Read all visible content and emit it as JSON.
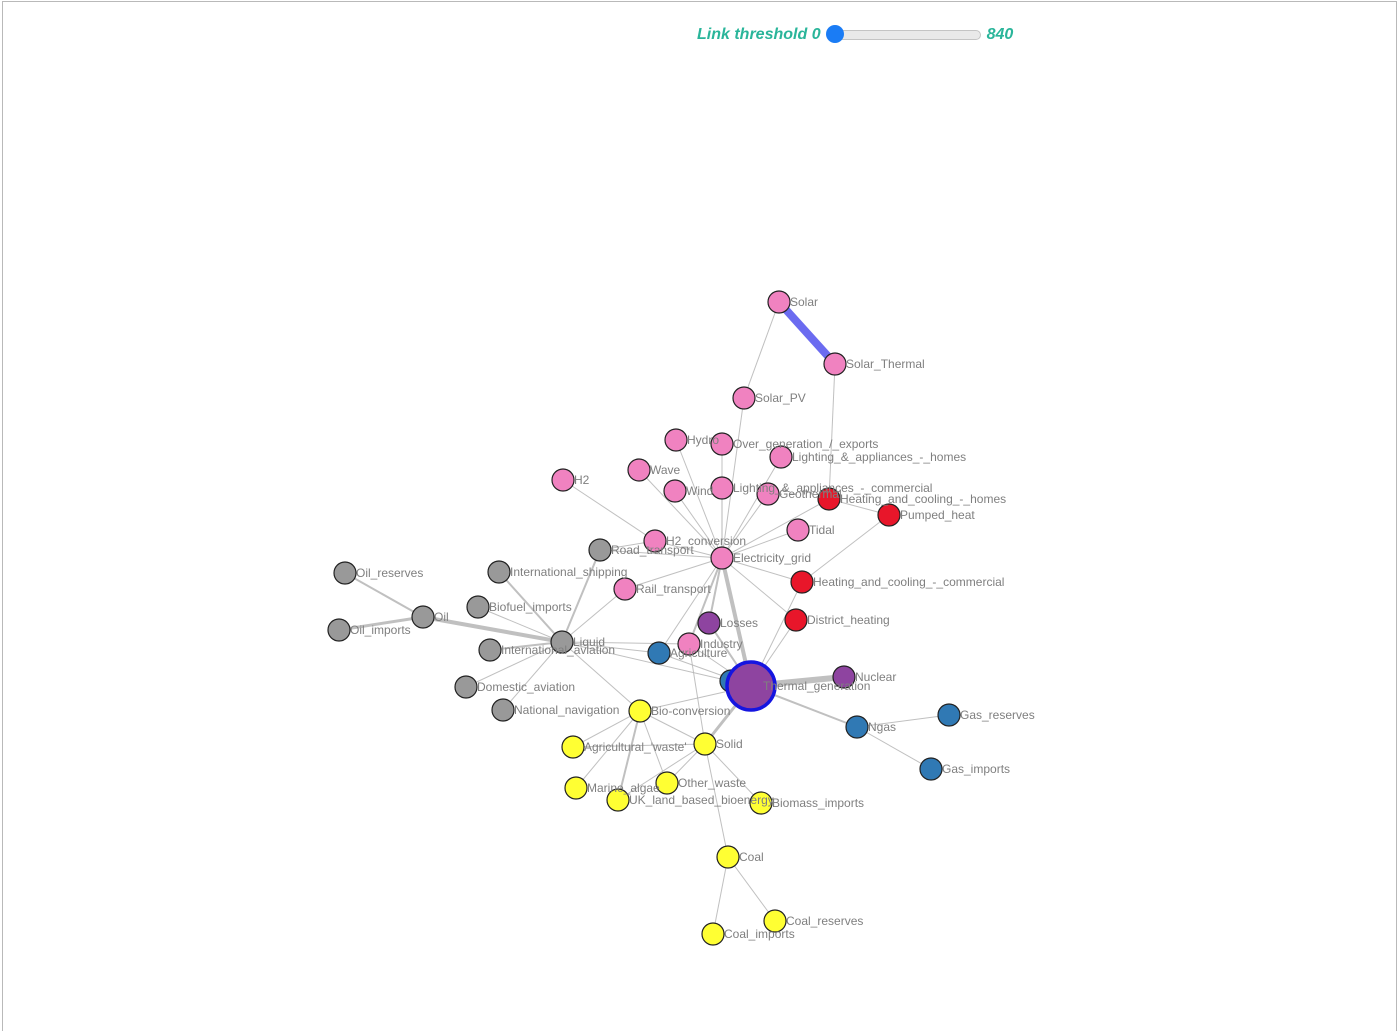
{
  "controls": {
    "label": "Link threshold",
    "min": "0",
    "max": "840",
    "value": 0
  },
  "colors": {
    "pink": "#f082c0",
    "gray": "#999999",
    "red": "#e8162a",
    "purple": "#8e44a0",
    "blue": "#3079b4",
    "yellow": "#ffff33",
    "link": "#b5b5b5",
    "highlight_link": "#6b6bf0",
    "selected_stroke": "#1515e0"
  },
  "nodes": [
    {
      "id": "Solar",
      "label": "Solar",
      "color": "pink"
    },
    {
      "id": "Solar_Thermal",
      "label": "Solar_Thermal",
      "color": "pink"
    },
    {
      "id": "Solar_PV",
      "label": "Solar_PV",
      "color": "pink"
    },
    {
      "id": "Hydro",
      "label": "Hydro",
      "color": "pink"
    },
    {
      "id": "Over_generation",
      "label": "Over_generation_/_exports",
      "color": "pink"
    },
    {
      "id": "Lighting_homes",
      "label": "Lighting_&_appliances_-_homes",
      "color": "pink"
    },
    {
      "id": "Wave",
      "label": "Wave",
      "color": "pink"
    },
    {
      "id": "H2",
      "label": "H2",
      "color": "pink"
    },
    {
      "id": "Wind",
      "label": "Wind",
      "color": "pink"
    },
    {
      "id": "Lighting_commercial",
      "label": "Lighting_&_appliances_-_commercial",
      "color": "pink"
    },
    {
      "id": "Geothermal",
      "label": "Geothermal",
      "color": "pink"
    },
    {
      "id": "Heating_homes",
      "label": "Heating_and_cooling_-_homes",
      "color": "red"
    },
    {
      "id": "Pumped_heat",
      "label": "Pumped_heat",
      "color": "red"
    },
    {
      "id": "Tidal",
      "label": "Tidal",
      "color": "pink"
    },
    {
      "id": "H2_conversion",
      "label": "H2_conversion",
      "color": "pink"
    },
    {
      "id": "Road_transport",
      "label": "Road_transport",
      "color": "gray"
    },
    {
      "id": "Electricity_grid",
      "label": "Electricity_grid",
      "color": "pink"
    },
    {
      "id": "Oil_reserves",
      "label": "Oil_reserves",
      "color": "gray"
    },
    {
      "id": "International_shipping",
      "label": "International_shipping",
      "color": "gray"
    },
    {
      "id": "Rail_transport",
      "label": "Rail_transport",
      "color": "pink"
    },
    {
      "id": "Heating_commercial",
      "label": "Heating_and_cooling_-_commercial",
      "color": "red"
    },
    {
      "id": "Biofuel_imports",
      "label": "Biofuel_imports",
      "color": "gray"
    },
    {
      "id": "Oil",
      "label": "Oil",
      "color": "gray"
    },
    {
      "id": "Oil_imports",
      "label": "Oil_imports",
      "color": "gray"
    },
    {
      "id": "Losses",
      "label": "Losses",
      "color": "purple"
    },
    {
      "id": "District_heating",
      "label": "District_heating",
      "color": "red"
    },
    {
      "id": "Liquid",
      "label": "Liquid",
      "color": "gray"
    },
    {
      "id": "Industry",
      "label": "Industry",
      "color": "pink"
    },
    {
      "id": "International_aviation",
      "label": "International_aviation",
      "color": "gray"
    },
    {
      "id": "Agriculture",
      "label": "Agriculture",
      "color": "blue"
    },
    {
      "id": "Nuclear",
      "label": "Nuclear",
      "color": "purple"
    },
    {
      "id": "Gas",
      "label": "",
      "color": "blue"
    },
    {
      "id": "Thermal_generation",
      "label": "Thermal_generation",
      "color": "purple",
      "selected": true
    },
    {
      "id": "Domestic_aviation",
      "label": "Domestic_aviation",
      "color": "gray"
    },
    {
      "id": "National_navigation",
      "label": "National_navigation",
      "color": "gray"
    },
    {
      "id": "Bio_conversion",
      "label": "Bio-conversion",
      "color": "yellow"
    },
    {
      "id": "Gas_reserves",
      "label": "Gas_reserves",
      "color": "blue"
    },
    {
      "id": "Ngas",
      "label": "Ngas",
      "color": "blue"
    },
    {
      "id": "Agricultural_waste",
      "label": "Agricultural_'waste'",
      "color": "yellow"
    },
    {
      "id": "Solid",
      "label": "Solid",
      "color": "yellow"
    },
    {
      "id": "Gas_imports",
      "label": "Gas_imports",
      "color": "blue"
    },
    {
      "id": "Other_waste",
      "label": "Other_waste",
      "color": "yellow"
    },
    {
      "id": "Marine_algae",
      "label": "Marine_algae",
      "color": "yellow"
    },
    {
      "id": "UK_bioenergy",
      "label": "UK_land_based_bioenergy",
      "color": "yellow"
    },
    {
      "id": "Biomass_imports",
      "label": "Biomass_imports",
      "color": "yellow"
    },
    {
      "id": "Coal",
      "label": "Coal",
      "color": "yellow"
    },
    {
      "id": "Coal_reserves",
      "label": "Coal_reserves",
      "color": "yellow"
    },
    {
      "id": "Coal_imports",
      "label": "Coal_imports",
      "color": "yellow"
    }
  ],
  "links": [
    {
      "source": "Solar",
      "target": "Solar_Thermal",
      "weight": 8,
      "highlight": true
    },
    {
      "source": "Solar",
      "target": "Solar_PV",
      "weight": 1
    },
    {
      "source": "Solar_Thermal",
      "target": "Heating_homes",
      "weight": 1
    },
    {
      "source": "Solar_PV",
      "target": "Electricity_grid",
      "weight": 1
    },
    {
      "source": "Hydro",
      "target": "Electricity_grid",
      "weight": 1
    },
    {
      "source": "Over_generation",
      "target": "Electricity_grid",
      "weight": 1
    },
    {
      "source": "Lighting_homes",
      "target": "Electricity_grid",
      "weight": 1
    },
    {
      "source": "Wave",
      "target": "Electricity_grid",
      "weight": 1
    },
    {
      "source": "Wind",
      "target": "Electricity_grid",
      "weight": 1
    },
    {
      "source": "Lighting_commercial",
      "target": "Electricity_grid",
      "weight": 1
    },
    {
      "source": "Geothermal",
      "target": "Electricity_grid",
      "weight": 1
    },
    {
      "source": "Tidal",
      "target": "Electricity_grid",
      "weight": 1
    },
    {
      "source": "Heating_homes",
      "target": "Electricity_grid",
      "weight": 1
    },
    {
      "source": "Heating_homes",
      "target": "Pumped_heat",
      "weight": 1
    },
    {
      "source": "Pumped_heat",
      "target": "Heating_commercial",
      "weight": 1
    },
    {
      "source": "Heating_commercial",
      "target": "Electricity_grid",
      "weight": 1
    },
    {
      "source": "H2",
      "target": "H2_conversion",
      "weight": 1
    },
    {
      "source": "H2_conversion",
      "target": "Electricity_grid",
      "weight": 1
    },
    {
      "source": "H2_conversion",
      "target": "Road_transport",
      "weight": 1
    },
    {
      "source": "Road_transport",
      "target": "Electricity_grid",
      "weight": 1
    },
    {
      "source": "Road_transport",
      "target": "Liquid",
      "weight": 2
    },
    {
      "source": "Rail_transport",
      "target": "Electricity_grid",
      "weight": 1
    },
    {
      "source": "Rail_transport",
      "target": "Liquid",
      "weight": 1
    },
    {
      "source": "Electricity_grid",
      "target": "Thermal_generation",
      "weight": 4
    },
    {
      "source": "Electricity_grid",
      "target": "Losses",
      "weight": 2
    },
    {
      "source": "Electricity_grid",
      "target": "Industry",
      "weight": 2
    },
    {
      "source": "Electricity_grid",
      "target": "Agriculture",
      "weight": 1
    },
    {
      "source": "Electricity_grid",
      "target": "District_heating",
      "weight": 1
    },
    {
      "source": "Oil_reserves",
      "target": "Oil",
      "weight": 2
    },
    {
      "source": "Oil_imports",
      "target": "Oil",
      "weight": 3
    },
    {
      "source": "Oil",
      "target": "Liquid",
      "weight": 4
    },
    {
      "source": "International_shipping",
      "target": "Liquid",
      "weight": 2
    },
    {
      "source": "Biofuel_imports",
      "target": "Liquid",
      "weight": 1
    },
    {
      "source": "International_aviation",
      "target": "Liquid",
      "weight": 2
    },
    {
      "source": "Domestic_aviation",
      "target": "Liquid",
      "weight": 1
    },
    {
      "source": "National_navigation",
      "target": "Liquid",
      "weight": 1
    },
    {
      "source": "Liquid",
      "target": "Industry",
      "weight": 1
    },
    {
      "source": "Liquid",
      "target": "Agriculture",
      "weight": 1
    },
    {
      "source": "Liquid",
      "target": "Thermal_generation",
      "weight": 1
    },
    {
      "source": "Liquid",
      "target": "Bio_conversion",
      "weight": 1
    },
    {
      "source": "Losses",
      "target": "Thermal_generation",
      "weight": 2
    },
    {
      "source": "District_heating",
      "target": "Thermal_generation",
      "weight": 1
    },
    {
      "source": "Heating_commercial",
      "target": "Thermal_generation",
      "weight": 1
    },
    {
      "source": "Industry",
      "target": "Thermal_generation",
      "weight": 1
    },
    {
      "source": "Agriculture",
      "target": "Thermal_generation",
      "weight": 1
    },
    {
      "source": "Gas",
      "target": "Thermal_generation",
      "weight": 2
    },
    {
      "source": "Nuclear",
      "target": "Thermal_generation",
      "weight": 6
    },
    {
      "source": "Ngas",
      "target": "Thermal_generation",
      "weight": 2
    },
    {
      "source": "Gas_reserves",
      "target": "Ngas",
      "weight": 1
    },
    {
      "source": "Gas_imports",
      "target": "Ngas",
      "weight": 1
    },
    {
      "source": "Bio_conversion",
      "target": "Thermal_generation",
      "weight": 1
    },
    {
      "source": "Bio_conversion",
      "target": "Agricultural_waste",
      "weight": 1
    },
    {
      "source": "Bio_conversion",
      "target": "Marine_algae",
      "weight": 1
    },
    {
      "source": "Bio_conversion",
      "target": "UK_bioenergy",
      "weight": 2
    },
    {
      "source": "Bio_conversion",
      "target": "Other_waste",
      "weight": 1
    },
    {
      "source": "Bio_conversion",
      "target": "Solid",
      "weight": 1
    },
    {
      "source": "Solid",
      "target": "Thermal_generation",
      "weight": 3
    },
    {
      "source": "Solid",
      "target": "Agricultural_waste",
      "weight": 1
    },
    {
      "source": "Solid",
      "target": "UK_bioenergy",
      "weight": 1
    },
    {
      "source": "Solid",
      "target": "Other_waste",
      "weight": 1
    },
    {
      "source": "Solid",
      "target": "Biomass_imports",
      "weight": 1
    },
    {
      "source": "Solid",
      "target": "Coal",
      "weight": 1
    },
    {
      "source": "Solid",
      "target": "Industry",
      "weight": 1
    },
    {
      "source": "Coal",
      "target": "Coal_reserves",
      "weight": 1
    },
    {
      "source": "Coal",
      "target": "Coal_imports",
      "weight": 1
    }
  ]
}
